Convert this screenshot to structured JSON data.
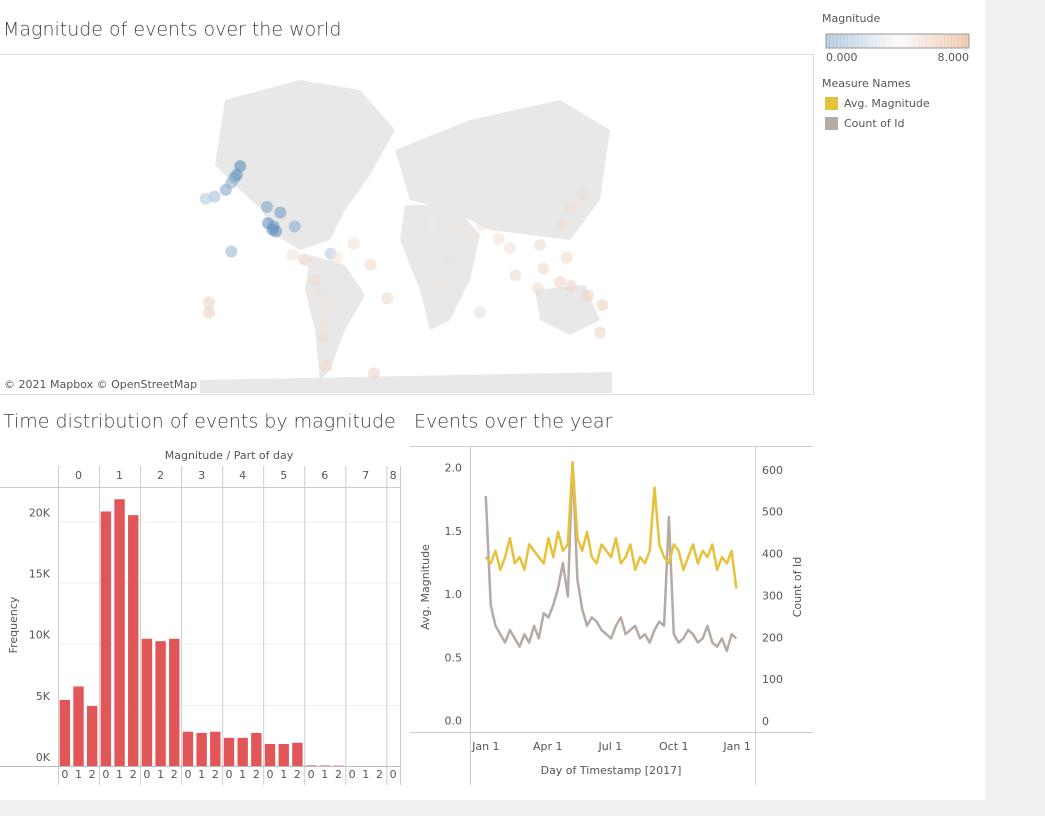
{
  "chart_data": [
    {
      "type": "map",
      "title": "Magnitude of events over the world",
      "attribution": "© 2021 Mapbox © OpenStreetMap",
      "color_legend": {
        "title": "Magnitude",
        "range": [
          0,
          8
        ],
        "ticks": [
          {
            "value": 0,
            "label": "0.000"
          },
          {
            "value": 8,
            "label": "8.000"
          }
        ],
        "colors": [
          "#2a6aa8",
          "#f4f4f4",
          "#d2601a"
        ]
      },
      "lon": [
        -150,
        -152,
        -147,
        -155,
        -160,
        -170,
        -178,
        -122,
        -118,
        -117,
        -115,
        -111,
        -98,
        -155,
        -66,
        -123,
        -100,
        -90,
        -80,
        -75,
        -70,
        -71,
        -73,
        -70,
        -27,
        -30,
        -45,
        -15,
        -60,
        25,
        45,
        60,
        70,
        85,
        95,
        100,
        120,
        125,
        122,
        142,
        150,
        160,
        146,
        150,
        165,
        178,
        -175,
        176,
        68,
        30,
        40,
        -175,
        140,
        -88
      ],
      "lat": [
        61,
        60,
        64,
        58,
        55,
        52,
        51,
        38,
        34,
        36,
        33,
        44,
        36,
        19.5,
        18,
        47,
        17,
        14,
        -2,
        -12,
        -22,
        -33,
        -40,
        -55,
        -58,
        10,
        25,
        -15,
        15,
        38,
        35,
        30,
        37,
        28,
        22,
        2,
        -8,
        7,
        24,
        38,
        46,
        53,
        15,
        -6,
        -13,
        -20,
        -18,
        -38,
        -25,
        -5,
        12,
        -25,
        -3,
        13
      ],
      "values": [
        1.2,
        1.5,
        1.0,
        2.0,
        1.8,
        2.5,
        2.8,
        1.1,
        1.0,
        1.3,
        1.2,
        1.5,
        2.0,
        2.2,
        2.8,
        1.7,
        4.5,
        4.6,
        4.6,
        4.5,
        4.4,
        4.5,
        4.6,
        4.7,
        4.8,
        4.7,
        4.5,
        4.7,
        4.4,
        4.3,
        4.4,
        4.4,
        4.4,
        4.5,
        4.5,
        4.6,
        4.6,
        4.7,
        4.6,
        4.6,
        4.6,
        4.6,
        4.7,
        4.8,
        4.9,
        4.9,
        4.9,
        4.8,
        4.6,
        4.4,
        4.5,
        5.0,
        4.8,
        4.7
      ]
    },
    {
      "type": "bar",
      "title": "Time distribution of events by magnitude",
      "column_header": "Magnitude / Part of day",
      "ylabel": "Frequency",
      "color": "#e15759",
      "groups": [
        {
          "name": "0",
          "categories": [
            "0",
            "1",
            "2"
          ],
          "values": [
            5400,
            6500,
            4900
          ]
        },
        {
          "name": "1",
          "categories": [
            "0",
            "1",
            "2"
          ],
          "values": [
            20800,
            21800,
            20500
          ]
        },
        {
          "name": "2",
          "categories": [
            "0",
            "1",
            "2"
          ],
          "values": [
            10400,
            10200,
            10400
          ]
        },
        {
          "name": "3",
          "categories": [
            "0",
            "1",
            "2"
          ],
          "values": [
            2800,
            2700,
            2800
          ]
        },
        {
          "name": "4",
          "categories": [
            "0",
            "1",
            "2"
          ],
          "values": [
            2300,
            2300,
            2700
          ]
        },
        {
          "name": "5",
          "categories": [
            "0",
            "1",
            "2"
          ],
          "values": [
            1800,
            1800,
            1900
          ]
        },
        {
          "name": "6",
          "categories": [
            "0",
            "1",
            "2"
          ],
          "values": [
            50,
            40,
            30
          ]
        },
        {
          "name": "7",
          "categories": [
            "0",
            "1",
            "2"
          ],
          "values": [
            0,
            0,
            0
          ]
        },
        {
          "name": "8",
          "categories": [
            "0"
          ],
          "values": [
            0
          ]
        }
      ],
      "ylim": [
        0,
        22800
      ],
      "yticks": [
        {
          "value": 0,
          "label": "0K"
        },
        {
          "value": 5000,
          "label": "5K"
        },
        {
          "value": 10000,
          "label": "10K"
        },
        {
          "value": 15000,
          "label": "15K"
        },
        {
          "value": 20000,
          "label": "20K"
        }
      ],
      "grid": true
    },
    {
      "type": "line",
      "title": "Events over the year",
      "xlabel": "Day of Timestamp [2017]",
      "ylabel": "Avg. Magnitude",
      "y2label": "Count of Id",
      "legend_title": "Measure Names",
      "x": [
        1,
        8,
        15,
        22,
        29,
        36,
        43,
        50,
        57,
        64,
        71,
        78,
        85,
        92,
        99,
        106,
        113,
        120,
        127,
        134,
        141,
        148,
        155,
        162,
        169,
        176,
        183,
        190,
        197,
        204,
        211,
        218,
        225,
        232,
        239,
        246,
        253,
        260,
        267,
        274,
        281,
        288,
        295,
        302,
        309,
        316,
        323,
        330,
        337,
        344,
        351,
        358,
        365
      ],
      "series": [
        {
          "name": "Avg. Magnitude",
          "color": "#e8c13a",
          "axis": "y",
          "values": [
            1.3,
            1.25,
            1.35,
            1.2,
            1.3,
            1.45,
            1.25,
            1.3,
            1.2,
            1.4,
            1.35,
            1.3,
            1.25,
            1.45,
            1.3,
            1.5,
            1.35,
            1.4,
            2.05,
            1.45,
            1.35,
            1.5,
            1.3,
            1.25,
            1.4,
            1.35,
            1.3,
            1.45,
            1.25,
            1.3,
            1.4,
            1.2,
            1.3,
            1.25,
            1.35,
            1.85,
            1.4,
            1.3,
            1.25,
            1.4,
            1.35,
            1.2,
            1.3,
            1.4,
            1.25,
            1.35,
            1.3,
            1.4,
            1.2,
            1.3,
            1.25,
            1.35,
            1.05
          ]
        },
        {
          "name": "Count of Id",
          "color": "#b5aba4",
          "axis": "y2",
          "values": [
            540,
            280,
            230,
            210,
            190,
            220,
            200,
            180,
            210,
            190,
            230,
            200,
            260,
            250,
            280,
            320,
            380,
            300,
            620,
            340,
            270,
            230,
            250,
            240,
            220,
            210,
            200,
            230,
            250,
            210,
            220,
            230,
            200,
            210,
            190,
            220,
            240,
            230,
            490,
            210,
            190,
            200,
            220,
            210,
            190,
            200,
            230,
            190,
            180,
            200,
            170,
            210,
            200
          ]
        }
      ],
      "xlim": [
        -22,
        392
      ],
      "xticks": [
        {
          "value": 1,
          "label": "Jan 1"
        },
        {
          "value": 91,
          "label": "Apr 1"
        },
        {
          "value": 182,
          "label": "Jul 1"
        },
        {
          "value": 274,
          "label": "Oct 1"
        },
        {
          "value": 366,
          "label": "Jan 1"
        }
      ],
      "ylim": [
        -0.09,
        2.17
      ],
      "yticks": [
        {
          "value": 0,
          "label": "0.0"
        },
        0.5,
        {
          "value": 1,
          "label": "1.0"
        },
        1.5,
        {
          "value": 2,
          "label": "2.0"
        }
      ],
      "y2lim": [
        -26,
        657
      ],
      "y2ticks": [
        0,
        100,
        200,
        300,
        400,
        500,
        600
      ]
    }
  ]
}
